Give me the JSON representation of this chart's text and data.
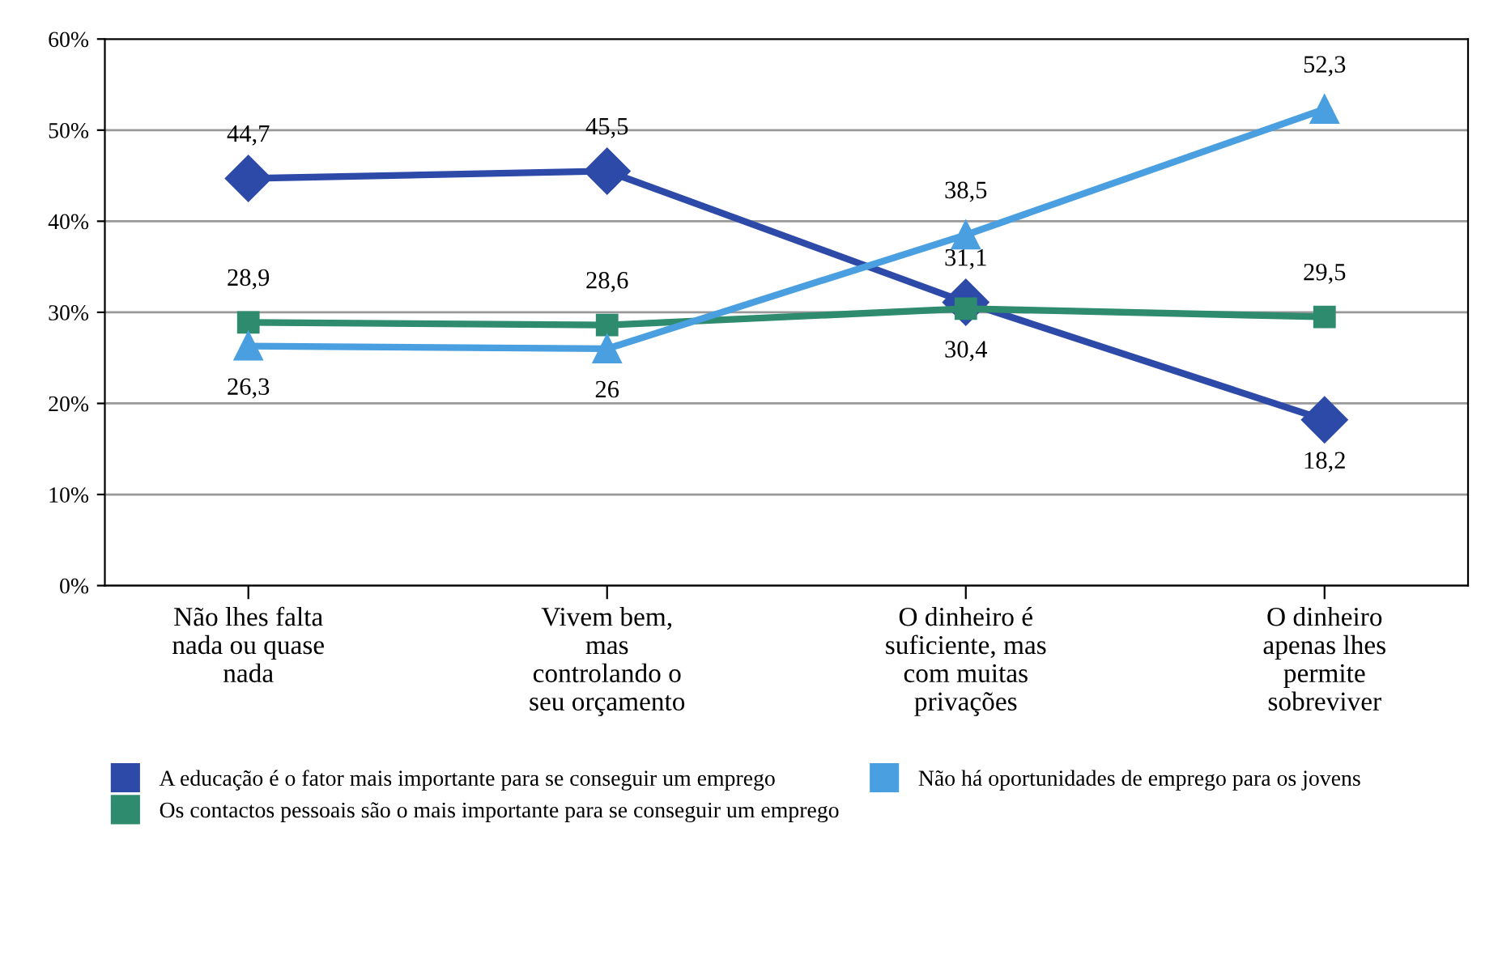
{
  "chart_data": {
    "type": "line",
    "categories": [
      "Não lhes falta nada ou quase nada",
      "Vivem bem, mas controlando o seu orçamento",
      "O dinheiro é suficiente, mas com muitas privações",
      "O dinheiro apenas lhes permite sobreviver"
    ],
    "series": [
      {
        "name": "A educação é o fator mais importante para se conseguir um emprego",
        "color": "#2e4aa8",
        "marker": "diamond",
        "values": [
          44.7,
          45.5,
          31.1,
          18.2
        ],
        "value_labels": [
          "44,7",
          "45,5",
          "31,1",
          "18,2"
        ]
      },
      {
        "name": "Os contactos pessoais são o mais importante para se conseguir um emprego",
        "color": "#2e8b6e",
        "marker": "square",
        "values": [
          28.9,
          28.6,
          30.4,
          29.5
        ],
        "value_labels": [
          "28,9",
          "28,6",
          "30,4",
          "29,5"
        ]
      },
      {
        "name": "Não há oportunidades de emprego para os jovens",
        "color": "#4a9fe0",
        "marker": "triangle",
        "values": [
          26.3,
          26,
          38.5,
          52.3
        ],
        "value_labels": [
          "26,3",
          "26",
          "38,5",
          "52,3"
        ]
      }
    ],
    "ylim": [
      0,
      60
    ],
    "yticks": [
      {
        "value": 0,
        "label": "0%"
      },
      {
        "value": 10,
        "label": "10%"
      },
      {
        "value": 20,
        "label": "20%"
      },
      {
        "value": 30,
        "label": "30%"
      },
      {
        "value": 40,
        "label": "40%"
      },
      {
        "value": 50,
        "label": "50%"
      },
      {
        "value": 60,
        "label": "60%"
      }
    ],
    "grid": "y",
    "legend": "bottom",
    "line_style": "solid"
  }
}
